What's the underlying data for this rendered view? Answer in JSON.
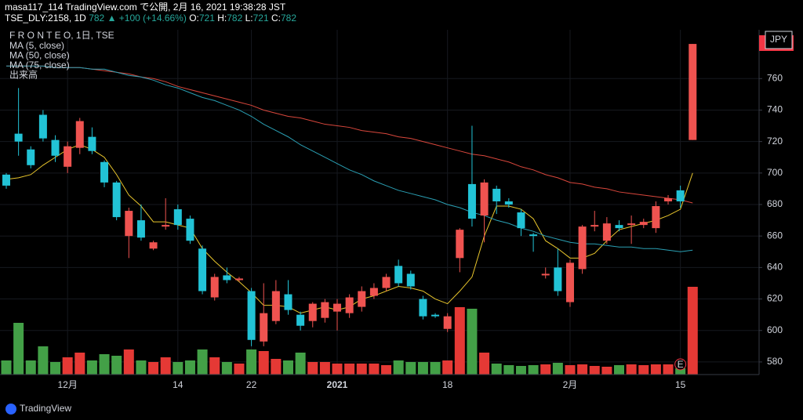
{
  "header": {
    "publisher": "masa117_114 TradingView.com で公開, 2月 16, 2021 19:38:28 JST",
    "symbol": "TSE_DLY:2158, 1D",
    "last": 782,
    "change": "▲ +100 (+14.66%)",
    "ohlc": [
      {
        "label": "O:",
        "value": 721
      },
      {
        "label": "H:",
        "value": 782
      },
      {
        "label": "L:",
        "value": 721
      },
      {
        "label": "C:",
        "value": 782
      }
    ]
  },
  "chart_data": {
    "type": "candlestick",
    "title": "F R O N T E O, 1日, TSE",
    "currency": "JPY",
    "categories": [
      null,
      null,
      null,
      null,
      null,
      "12月",
      null,
      null,
      null,
      null,
      null,
      null,
      null,
      null,
      "14",
      null,
      null,
      null,
      null,
      null,
      "22",
      null,
      null,
      null,
      null,
      null,
      null,
      "2021",
      null,
      null,
      null,
      null,
      null,
      null,
      null,
      null,
      "18",
      null,
      null,
      null,
      null,
      null,
      null,
      null,
      null,
      null,
      "2月",
      null,
      null,
      null,
      null,
      null,
      null,
      null,
      null,
      "15",
      null
    ],
    "open": [
      699,
      725,
      715,
      737,
      721,
      704,
      716,
      723,
      707,
      694,
      660,
      670,
      652,
      666,
      677,
      671,
      652,
      621,
      635,
      632,
      625,
      593,
      606,
      623,
      610,
      606,
      608,
      612,
      611,
      615,
      622,
      627,
      641,
      636,
      620,
      610,
      601,
      646,
      693,
      673,
      690,
      682,
      675,
      661,
      635,
      640,
      618,
      639,
      666,
      657,
      667,
      667,
      667,
      665,
      682,
      689,
      721
    ],
    "high": [
      700,
      754,
      717,
      740,
      724,
      720,
      735,
      729,
      708,
      695,
      678,
      680,
      657,
      684,
      680,
      673,
      654,
      636,
      640,
      634,
      627,
      630,
      632,
      632,
      612,
      618,
      620,
      620,
      623,
      628,
      630,
      636,
      645,
      638,
      622,
      611,
      611,
      665,
      730,
      696,
      692,
      684,
      677,
      662,
      640,
      652,
      645,
      667,
      676,
      672,
      670,
      673,
      671,
      682,
      686,
      692,
      782
    ],
    "low": [
      690,
      711,
      703,
      720,
      707,
      700,
      712,
      712,
      691,
      670,
      646,
      657,
      651,
      664,
      664,
      655,
      623,
      619,
      630,
      631,
      590,
      590,
      604,
      610,
      600,
      602,
      605,
      600,
      608,
      612,
      620,
      625,
      628,
      626,
      607,
      608,
      599,
      637,
      666,
      656,
      674,
      678,
      660,
      650,
      633,
      622,
      615,
      636,
      663,
      655,
      663,
      655,
      665,
      662,
      680,
      678,
      721
    ],
    "close": [
      692,
      720,
      705,
      722,
      711,
      717,
      733,
      714,
      694,
      672,
      676,
      659,
      656,
      667,
      667,
      657,
      625,
      634,
      632,
      633,
      594,
      611,
      625,
      613,
      603,
      617,
      618,
      617,
      621,
      625,
      627,
      634,
      630,
      628,
      609,
      609,
      609,
      664,
      671,
      694,
      682,
      680,
      665,
      660,
      636,
      625,
      643,
      666,
      667,
      668,
      665,
      668,
      669,
      679,
      684,
      682,
      782
    ],
    "up_color": "#ef5350",
    "down_color": "#22c3d6",
    "series": [
      {
        "name": "MA (5, close)",
        "color": "#e8c52c",
        "values": [
          696,
          697,
          699,
          705,
          710,
          715,
          718,
          715,
          710,
          699,
          686,
          679,
          669,
          669,
          667,
          665,
          652,
          644,
          637,
          631,
          624,
          616,
          616,
          615,
          611,
          613,
          615,
          613,
          615,
          620,
          622,
          625,
          628,
          627,
          625,
          620,
          617,
          625,
          634,
          660,
          679,
          679,
          677,
          671,
          657,
          652,
          646,
          646,
          649,
          657,
          664,
          666,
          668,
          670,
          673,
          677,
          700
        ]
      },
      {
        "name": "MA (50, close)",
        "color": "#d9473c",
        "values": [
          768,
          768,
          768,
          768,
          767,
          767,
          767,
          766,
          765,
          764,
          763,
          761,
          760,
          758,
          755,
          753,
          751,
          749,
          747,
          745,
          743,
          740,
          738,
          736,
          735,
          733,
          731,
          730,
          729,
          727,
          726,
          725,
          723,
          722,
          720,
          718,
          716,
          714,
          712,
          711,
          709,
          707,
          704,
          702,
          699,
          697,
          694,
          693,
          691,
          690,
          688,
          687,
          686,
          685,
          684,
          683,
          681
        ]
      },
      {
        "name": "MA (75, close)",
        "color": "#2a9fb3",
        "values": [
          768,
          768,
          768,
          768,
          767,
          767,
          767,
          766,
          766,
          764,
          762,
          761,
          759,
          756,
          754,
          751,
          748,
          746,
          743,
          740,
          736,
          731,
          727,
          723,
          718,
          714,
          710,
          706,
          702,
          699,
          695,
          692,
          689,
          687,
          685,
          683,
          680,
          678,
          675,
          673,
          670,
          668,
          665,
          663,
          660,
          658,
          656,
          655,
          655,
          654,
          653,
          653,
          652,
          652,
          651,
          650,
          651
        ]
      }
    ],
    "volume": {
      "name": "出来高",
      "up_color": "#e53935",
      "down_color": "#43a047",
      "values": [
        18,
        66,
        18,
        36,
        16,
        22,
        28,
        18,
        26,
        24,
        32,
        18,
        16,
        22,
        16,
        18,
        32,
        22,
        16,
        14,
        32,
        30,
        20,
        18,
        28,
        16,
        16,
        14,
        14,
        14,
        14,
        12,
        18,
        16,
        16,
        16,
        18,
        86,
        84,
        28,
        14,
        12,
        11,
        12,
        13,
        15,
        12,
        13,
        11,
        10,
        12,
        13,
        12,
        13,
        13,
        8,
        112
      ]
    },
    "annotation": "E",
    "ylim": [
      572,
      791
    ],
    "yticks": [
      580,
      600,
      620,
      640,
      660,
      680,
      700,
      720,
      740,
      760
    ],
    "grid": true
  },
  "footer": {
    "brand": "TradingView"
  }
}
